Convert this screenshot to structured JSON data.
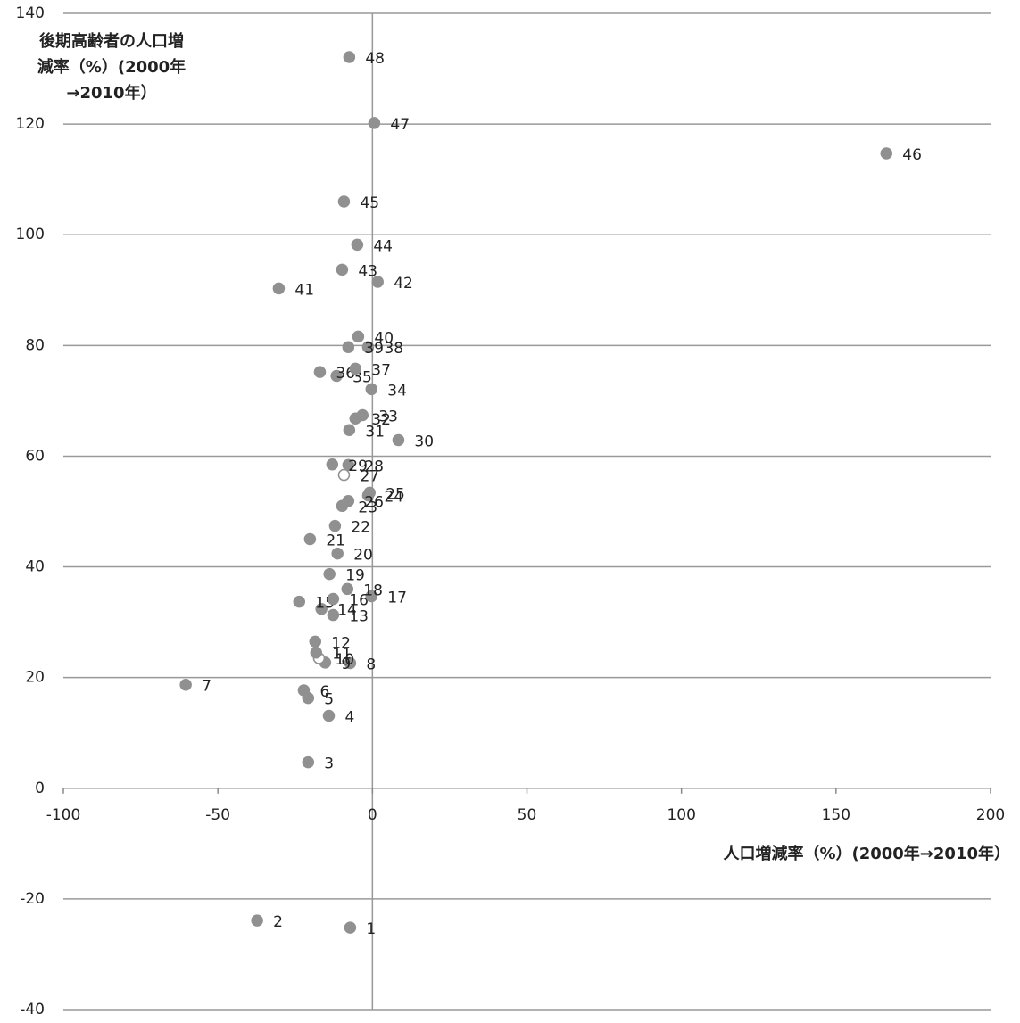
{
  "chart_data": {
    "type": "scatter",
    "title_lines": [
      "後期高齢者の人口増",
      "減率（%）(2000年",
      "→2010年）"
    ],
    "x_label": "人口増減率（%）(2000年→2010年）",
    "xlim": [
      -100,
      200
    ],
    "xticks": [
      -100,
      -50,
      0,
      50,
      100,
      150,
      200
    ],
    "ylim": [
      -40,
      140
    ],
    "yticks": [
      -40,
      -20,
      0,
      20,
      40,
      60,
      80,
      100,
      120,
      140
    ],
    "grid": true,
    "color": "#909090",
    "labels": [
      "1",
      "2",
      "3",
      "4",
      "5",
      "6",
      "7",
      "8",
      "9",
      "10",
      "11",
      "12",
      "13",
      "14",
      "15",
      "16",
      "17",
      "18",
      "19",
      "20",
      "21",
      "22",
      "23",
      "24",
      "25",
      "26",
      "27",
      "28",
      "29",
      "30",
      "31",
      "32",
      "33",
      "34",
      "35",
      "36",
      "37",
      "38",
      "39",
      "40",
      "41",
      "42",
      "43",
      "44",
      "45",
      "46",
      "47",
      "48"
    ],
    "x": [
      -7.2,
      -37.3,
      -20.8,
      -14.1,
      -20.8,
      -22.2,
      -60.4,
      -7.2,
      -15.3,
      -17.3,
      -18.2,
      -18.5,
      -12.7,
      -16.5,
      -23.7,
      -12.7,
      -0.3,
      -8.1,
      -13.9,
      -11.3,
      -20.2,
      -12.1,
      -9.8,
      -1.4,
      -0.9,
      -7.8,
      -9.2,
      -7.8,
      -13.0,
      8.4,
      -7.5,
      -5.5,
      -3.2,
      -0.3,
      -11.6,
      -17.0,
      -5.5,
      -1.4,
      -7.8,
      -4.6,
      -30.3,
      1.7,
      -9.8,
      -4.9,
      -9.2,
      166.3,
      0.6,
      -7.5
    ],
    "y": [
      -25.2,
      -23.9,
      4.7,
      13.1,
      16.3,
      17.7,
      18.7,
      22.6,
      22.7,
      23.5,
      24.5,
      26.5,
      31.3,
      32.4,
      33.7,
      34.2,
      34.7,
      36.0,
      38.7,
      42.4,
      45.0,
      47.4,
      51.0,
      52.9,
      53.4,
      51.9,
      56.6,
      58.4,
      58.5,
      62.9,
      64.7,
      66.8,
      67.4,
      72.1,
      74.5,
      75.2,
      75.8,
      79.7,
      79.7,
      81.6,
      90.3,
      91.5,
      93.7,
      98.2,
      106.0,
      114.7,
      120.2,
      132.1
    ],
    "point_fills": [
      "#909090",
      "#909090",
      "#909090",
      "#909090",
      "#909090",
      "#909090",
      "#909090",
      "#909090",
      "#909090",
      "#ffffff",
      "#909090",
      "#909090",
      "#909090",
      "#909090",
      "#909090",
      "#909090",
      "#909090",
      "#909090",
      "#909090",
      "#909090",
      "#909090",
      "#909090",
      "#909090",
      "#909090",
      "#909090",
      "#909090",
      "#ffffff",
      "#909090",
      "#909090",
      "#909090",
      "#909090",
      "#909090",
      "#909090",
      "#909090",
      "#909090",
      "#909090",
      "#909090",
      "#909090",
      "#909090",
      "#909090",
      "#909090",
      "#909090",
      "#909090",
      "#909090",
      "#909090",
      "#909090",
      "#909090",
      "#909090"
    ]
  }
}
